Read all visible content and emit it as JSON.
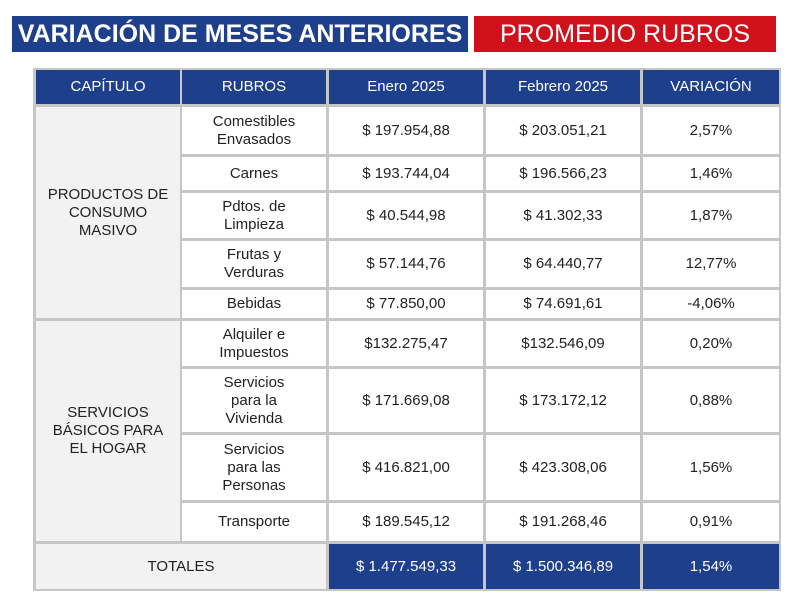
{
  "header": {
    "title": "VARIACIÓN DE MESES ANTERIORES",
    "subtitle": "PROMEDIO RUBROS"
  },
  "table": {
    "columns": [
      "CAPÍTULO",
      "RUBROS",
      "Enero 2025",
      "Febrero 2025",
      "VARIACIÓN"
    ],
    "groups": [
      {
        "chapter": "PRODUCTOS DE\nCONSUMO\nMASIVO",
        "rows": [
          [
            "Comestibles\nEnvasados",
            "$ 197.954,88",
            "$ 203.051,21",
            "2,57%"
          ],
          [
            "Carnes",
            "$ 193.744,04",
            "$ 196.566,23",
            "1,46%"
          ],
          [
            "Pdtos. de\nLimpieza",
            "$ 40.544,98",
            "$ 41.302,33",
            "1,87%"
          ],
          [
            "Frutas y\nVerduras",
            "$ 57.144,76",
            "$ 64.440,77",
            "12,77%"
          ],
          [
            "Bebidas",
            "$ 77.850,00",
            "$ 74.691,61",
            "-4,06%"
          ]
        ]
      },
      {
        "chapter": "SERVICIOS\nBÁSICOS PARA\nEL HOGAR",
        "rows": [
          [
            "Alquiler e\nImpuestos",
            "$132.275,47",
            "$132.546,09",
            "0,20%"
          ],
          [
            "Servicios\npara la\nVivienda",
            "$ 171.669,08",
            "$ 173.172,12",
            "0,88%"
          ],
          [
            "Servicios\npara las\nPersonas",
            "$ 416.821,00",
            "$ 423.308,06",
            "1,56%"
          ],
          [
            "Transporte",
            "$ 189.545,12",
            "$ 191.268,46",
            "0,91%"
          ]
        ]
      }
    ],
    "totals": [
      "TOTALES",
      "$ 1.477.549,33",
      "$ 1.500.346,89",
      "1,54%"
    ]
  }
}
